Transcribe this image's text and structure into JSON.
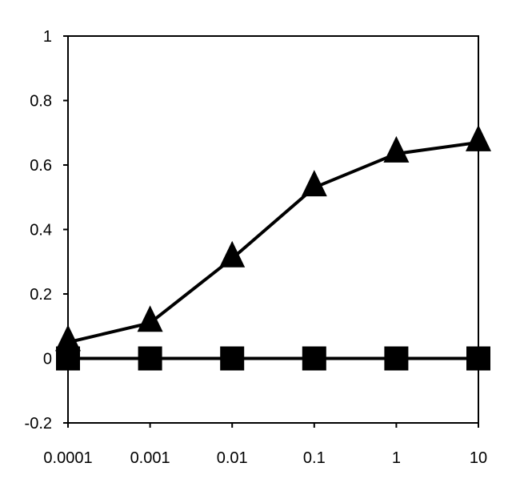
{
  "chart_data": {
    "type": "line",
    "title": "",
    "xlabel": "",
    "ylabel": "",
    "x_scale": "log",
    "x_tick_labels": [
      "0.0001",
      "0.001",
      "0.01",
      "0.1",
      "1",
      "10"
    ],
    "x": [
      0.0001,
      0.001,
      0.01,
      0.1,
      1,
      10
    ],
    "xlim": [
      0.0001,
      10
    ],
    "y_tick_labels": [
      "-0.2",
      "0",
      "0.2",
      "0.4",
      "0.6",
      "0.8",
      "1"
    ],
    "y_ticks": [
      -0.2,
      0,
      0.2,
      0.4,
      0.6,
      0.8,
      1
    ],
    "ylim": [
      -0.2,
      1
    ],
    "grid": false,
    "legend": "none",
    "series": [
      {
        "marker": "triangle",
        "color": "#000000",
        "values": [
          0.05,
          0.11,
          0.31,
          0.53,
          0.635,
          0.67
        ]
      },
      {
        "marker": "square",
        "color": "#000000",
        "values": [
          0.0,
          0.0,
          0.0,
          0.0,
          0.0,
          0.0
        ]
      }
    ]
  }
}
